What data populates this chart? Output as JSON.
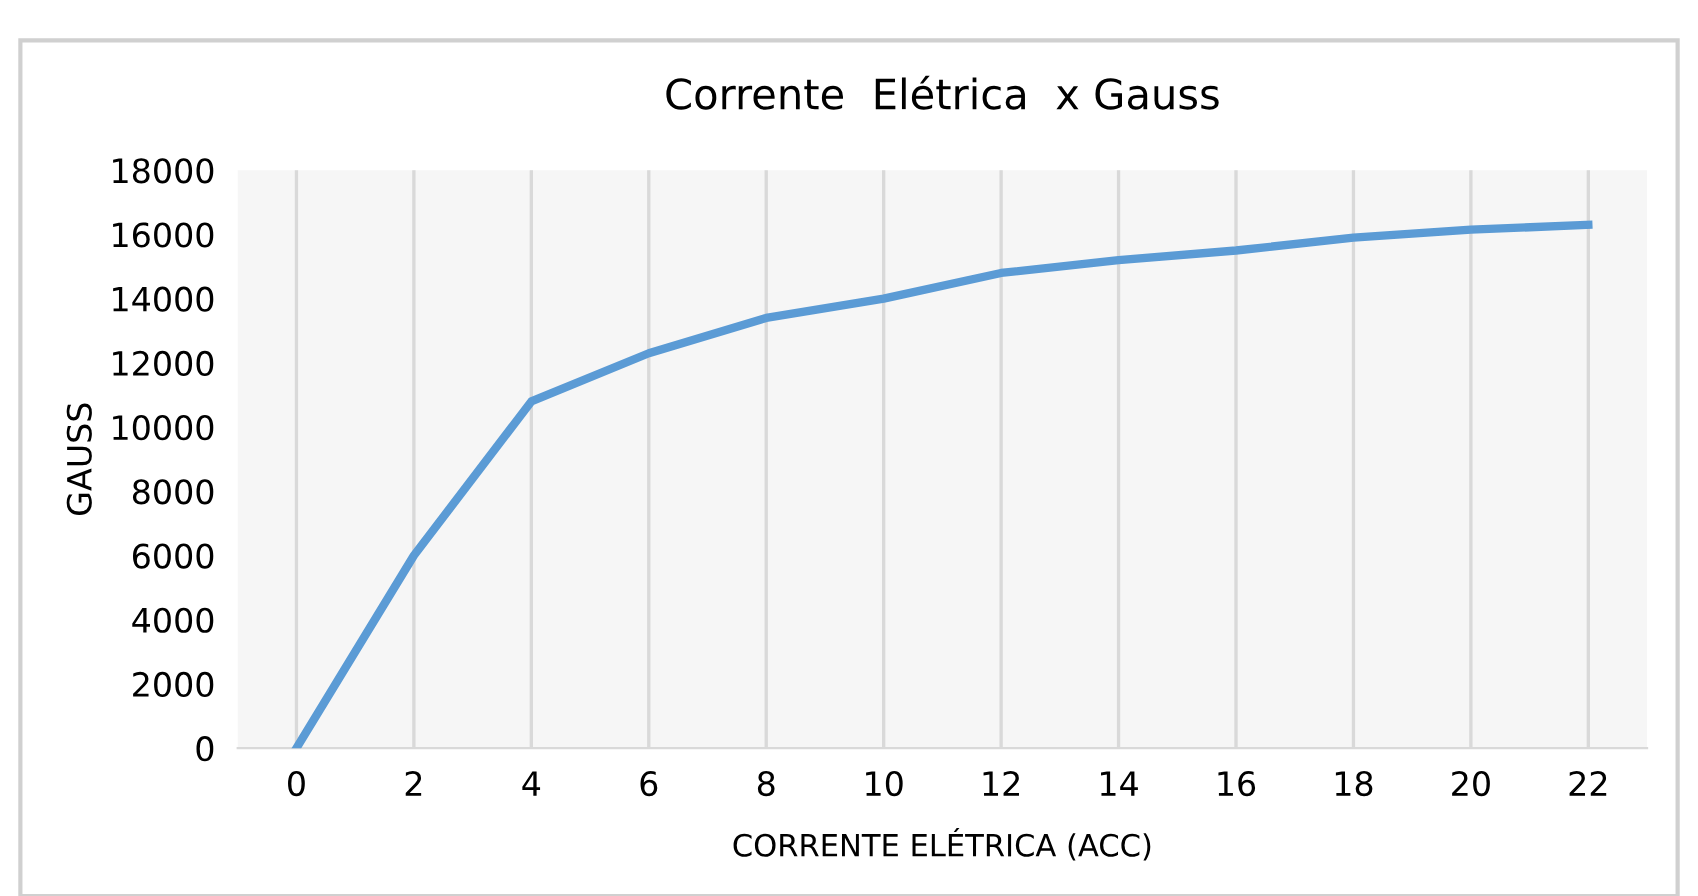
{
  "chart_data": {
    "type": "line",
    "title": "Corrente  Elétrica  x Gauss",
    "xlabel": "CORRENTE ELÉTRICA (ACC)",
    "ylabel": "GAUSS",
    "categories": [
      "0",
      "2",
      "4",
      "6",
      "8",
      "10",
      "12",
      "14",
      "16",
      "18",
      "20",
      "22"
    ],
    "series": [
      {
        "color": "#5b9bd5",
        "values": [
          0,
          6000,
          10800,
          12300,
          13400,
          14000,
          14800,
          15200,
          15500,
          15900,
          16150,
          16300
        ]
      }
    ],
    "ylim": [
      0,
      18000
    ],
    "yticks": [
      0,
      2000,
      4000,
      6000,
      8000,
      10000,
      12000,
      14000,
      16000,
      18000
    ],
    "grid": "x",
    "legend": false,
    "marker": "none",
    "line_style": "solid"
  }
}
